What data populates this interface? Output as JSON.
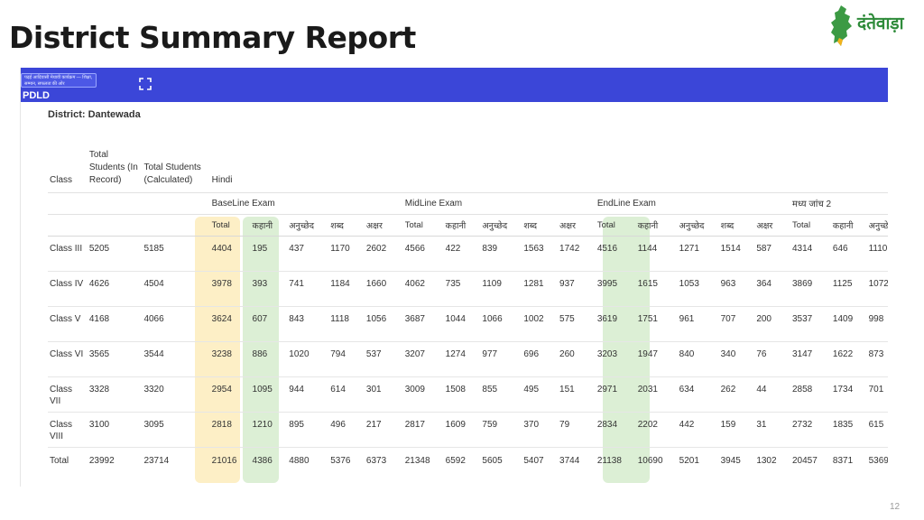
{
  "slide": {
    "title": "District Summary Report",
    "logo_text": "दंतेवाड़ा",
    "page_number": "12"
  },
  "app": {
    "name": "PDLD",
    "logo_caption": "पढ़ई आदिवासी मेधावी कार्यक्रम — शिक्षा, सम्मान, सफलता की ओर",
    "bar_color": "#3b46d8"
  },
  "report": {
    "district_label": "District: Dantewada",
    "headers": {
      "class": "Class",
      "total_in_record": "Total Students (In Record)",
      "total_calculated": "Total Students (Calculated)",
      "subject": "Hindi"
    },
    "exams": [
      "BaseLine Exam",
      "MidLine Exam",
      "EndLine Exam",
      "मध्य जांच 2"
    ],
    "sub_headers": [
      "Total",
      "कहानी",
      "अनुच्छेद",
      "शब्द",
      "अक्षर"
    ],
    "highlight_colors": {
      "baseline_total": "#fdefc6",
      "endline_story": "#dcefd5"
    },
    "rows": [
      {
        "class": "Class III",
        "in_record": "5205",
        "calculated": "5185",
        "baseline": [
          "4404",
          "195",
          "437",
          "1170",
          "2602"
        ],
        "midline": [
          "4566",
          "422",
          "839",
          "1563",
          "1742"
        ],
        "endline": [
          "4516",
          "1144",
          "1271",
          "1514",
          "587"
        ],
        "mid2": [
          "4314",
          "646",
          "1110"
        ]
      },
      {
        "class": "Class IV",
        "in_record": "4626",
        "calculated": "4504",
        "baseline": [
          "3978",
          "393",
          "741",
          "1184",
          "1660"
        ],
        "midline": [
          "4062",
          "735",
          "1109",
          "1281",
          "937"
        ],
        "endline": [
          "3995",
          "1615",
          "1053",
          "963",
          "364"
        ],
        "mid2": [
          "3869",
          "1125",
          "1072"
        ]
      },
      {
        "class": "Class V",
        "in_record": "4168",
        "calculated": "4066",
        "baseline": [
          "3624",
          "607",
          "843",
          "1118",
          "1056"
        ],
        "midline": [
          "3687",
          "1044",
          "1066",
          "1002",
          "575"
        ],
        "endline": [
          "3619",
          "1751",
          "961",
          "707",
          "200"
        ],
        "mid2": [
          "3537",
          "1409",
          "998"
        ]
      },
      {
        "class": "Class VI",
        "in_record": "3565",
        "calculated": "3544",
        "baseline": [
          "3238",
          "886",
          "1020",
          "794",
          "537"
        ],
        "midline": [
          "3207",
          "1274",
          "977",
          "696",
          "260"
        ],
        "endline": [
          "3203",
          "1947",
          "840",
          "340",
          "76"
        ],
        "mid2": [
          "3147",
          "1622",
          "873"
        ]
      },
      {
        "class": "Class VII",
        "in_record": "3328",
        "calculated": "3320",
        "baseline": [
          "2954",
          "1095",
          "944",
          "614",
          "301"
        ],
        "midline": [
          "3009",
          "1508",
          "855",
          "495",
          "151"
        ],
        "endline": [
          "2971",
          "2031",
          "634",
          "262",
          "44"
        ],
        "mid2": [
          "2858",
          "1734",
          "701"
        ]
      },
      {
        "class": "Class VIII",
        "in_record": "3100",
        "calculated": "3095",
        "baseline": [
          "2818",
          "1210",
          "895",
          "496",
          "217"
        ],
        "midline": [
          "2817",
          "1609",
          "759",
          "370",
          "79"
        ],
        "endline": [
          "2834",
          "2202",
          "442",
          "159",
          "31"
        ],
        "mid2": [
          "2732",
          "1835",
          "615"
        ]
      }
    ],
    "total": {
      "class": "Total",
      "in_record": "23992",
      "calculated": "23714",
      "baseline": [
        "21016",
        "4386",
        "4880",
        "5376",
        "6373"
      ],
      "midline": [
        "21348",
        "6592",
        "5605",
        "5407",
        "3744"
      ],
      "endline": [
        "21138",
        "10690",
        "5201",
        "3945",
        "1302"
      ],
      "mid2": [
        "20457",
        "8371",
        "5369"
      ]
    }
  }
}
